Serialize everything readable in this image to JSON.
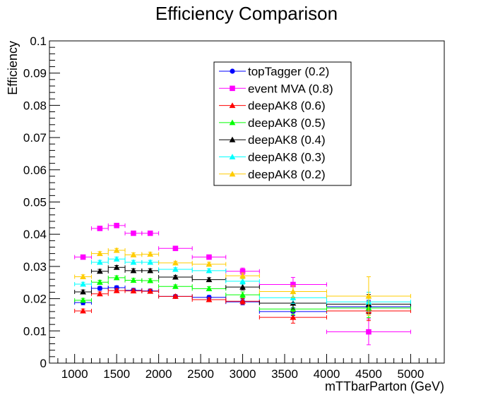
{
  "chart_data": {
    "type": "scatter",
    "title": "Efficiency Comparison",
    "xlabel": "mTTbarParton (GeV)",
    "ylabel": "Efficiency",
    "xlim": [
      700,
      5400
    ],
    "ylim": [
      0,
      0.1
    ],
    "x_ticks": [
      1000,
      1500,
      2000,
      2500,
      3000,
      3500,
      4000,
      4500,
      5000
    ],
    "x_tick_labels": [
      "1000",
      "1500",
      "2000",
      "2500",
      "3000",
      "3500",
      "4000",
      "4500",
      "5000"
    ],
    "y_ticks": [
      0,
      0.01,
      0.02,
      0.03,
      0.04,
      0.05,
      0.06,
      0.07,
      0.08,
      0.09,
      0.1
    ],
    "y_tick_labels": [
      "0",
      "0.01",
      "0.02",
      "0.03",
      "0.04",
      "0.05",
      "0.06",
      "0.07",
      "0.08",
      "0.09",
      "0.1"
    ],
    "legend_position": "top-right",
    "grid": false,
    "bins": [
      [
        1000,
        1200
      ],
      [
        1200,
        1400
      ],
      [
        1400,
        1600
      ],
      [
        1600,
        1800
      ],
      [
        1800,
        2000
      ],
      [
        2000,
        2400
      ],
      [
        2400,
        2800
      ],
      [
        2800,
        3200
      ],
      [
        3200,
        4000
      ],
      [
        4000,
        5000
      ]
    ],
    "x": [
      1100,
      1300,
      1500,
      1700,
      1900,
      2200,
      2600,
      3000,
      3600,
      4500
    ],
    "series": [
      {
        "name": "topTagger (0.2)",
        "color": "#0000ff",
        "marker": "circle",
        "values": [
          0.0188,
          0.0232,
          0.0234,
          0.0226,
          0.0224,
          0.0207,
          0.0204,
          0.019,
          0.016,
          0.0175
        ],
        "errors": [
          0.0007,
          0.0006,
          0.0006,
          0.0006,
          0.0006,
          0.0005,
          0.0006,
          0.0009,
          0.0012,
          0.002
        ]
      },
      {
        "name": "event MVA (0.8)",
        "color": "#ff00ff",
        "marker": "square",
        "values": [
          0.0329,
          0.0418,
          0.0427,
          0.0403,
          0.0403,
          0.0356,
          0.0329,
          0.0285,
          0.0244,
          0.0097
        ],
        "errors": [
          0.0006,
          0.0006,
          0.0006,
          0.0006,
          0.0006,
          0.0005,
          0.0007,
          0.001,
          0.0022,
          0.004
        ]
      },
      {
        "name": "deepAK8 (0.6)",
        "color": "#ff0000",
        "marker": "triangle",
        "values": [
          0.0162,
          0.0215,
          0.0225,
          0.0224,
          0.0223,
          0.0207,
          0.0197,
          0.0192,
          0.0142,
          0.0162
        ],
        "errors": [
          0.0006,
          0.0006,
          0.0006,
          0.0006,
          0.0006,
          0.0005,
          0.0006,
          0.0009,
          0.0018,
          0.003
        ]
      },
      {
        "name": "deepAK8 (0.5)",
        "color": "#00ff00",
        "marker": "triangle",
        "values": [
          0.0195,
          0.0251,
          0.0265,
          0.0257,
          0.0256,
          0.0238,
          0.0231,
          0.0212,
          0.0168,
          0.0171
        ],
        "errors": [
          0.0006,
          0.0006,
          0.0006,
          0.0006,
          0.0006,
          0.0005,
          0.0006,
          0.0009,
          0.0018,
          0.003
        ]
      },
      {
        "name": "deepAK8 (0.4)",
        "color": "#000000",
        "marker": "triangle",
        "values": [
          0.0221,
          0.0285,
          0.0297,
          0.0287,
          0.0287,
          0.0267,
          0.0259,
          0.0236,
          0.0186,
          0.0183
        ],
        "errors": [
          0.0006,
          0.0006,
          0.0006,
          0.0006,
          0.0006,
          0.0005,
          0.0006,
          0.0009,
          0.0018,
          0.003
        ]
      },
      {
        "name": "deepAK8 (0.3)",
        "color": "#00ffff",
        "marker": "triangle",
        "values": [
          0.0245,
          0.0313,
          0.0323,
          0.0313,
          0.0313,
          0.0291,
          0.0287,
          0.0254,
          0.0203,
          0.019
        ],
        "errors": [
          0.0006,
          0.0006,
          0.0006,
          0.0006,
          0.0006,
          0.0005,
          0.0006,
          0.0009,
          0.0018,
          0.003
        ]
      },
      {
        "name": "deepAK8 (0.2)",
        "color": "#ffcc00",
        "marker": "triangle",
        "values": [
          0.0268,
          0.034,
          0.035,
          0.0336,
          0.0338,
          0.0311,
          0.0307,
          0.0271,
          0.0222,
          0.0208
        ],
        "errors": [
          0.0006,
          0.0006,
          0.0006,
          0.0006,
          0.0006,
          0.0005,
          0.0006,
          0.0009,
          0.0018,
          0.006
        ]
      }
    ]
  }
}
